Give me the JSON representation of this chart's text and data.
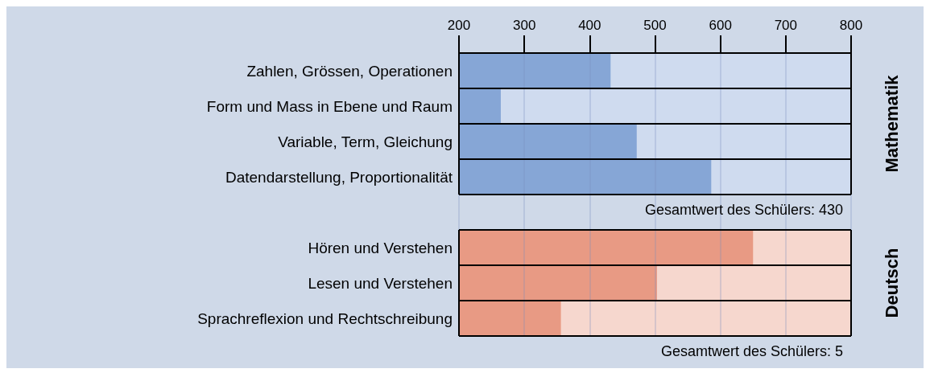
{
  "chart_data": {
    "type": "bar",
    "orientation": "horizontal",
    "categories": [
      "Zahlen, Grössen, Operationen",
      "Form und Mass in Ebene und Raum",
      "Variable, Term, Gleichung",
      "Datendarstellung, Proportionalität",
      null,
      "Hören und Verstehen",
      "Lesen und Verstehen",
      "Sprachreflexion und Rechtschreibung"
    ],
    "values": [
      432,
      264,
      472,
      586,
      null,
      650,
      503,
      356
    ],
    "colors": [
      "#86a6d6",
      "#86a6d6",
      "#86a6d6",
      "#86a6d6",
      "#86a6d6",
      "#e89a84",
      "#e89a84",
      "#e89a84"
    ],
    "xlim": [
      200,
      800
    ],
    "xticks": [
      200,
      300,
      400,
      500,
      600,
      700,
      800
    ],
    "grid": "x",
    "annotations": [
      "Mathematik",
      "Gesamtwert des Schülers: 430",
      "Deutsch",
      "Gesamtwert des Schülers: 5"
    ]
  }
}
